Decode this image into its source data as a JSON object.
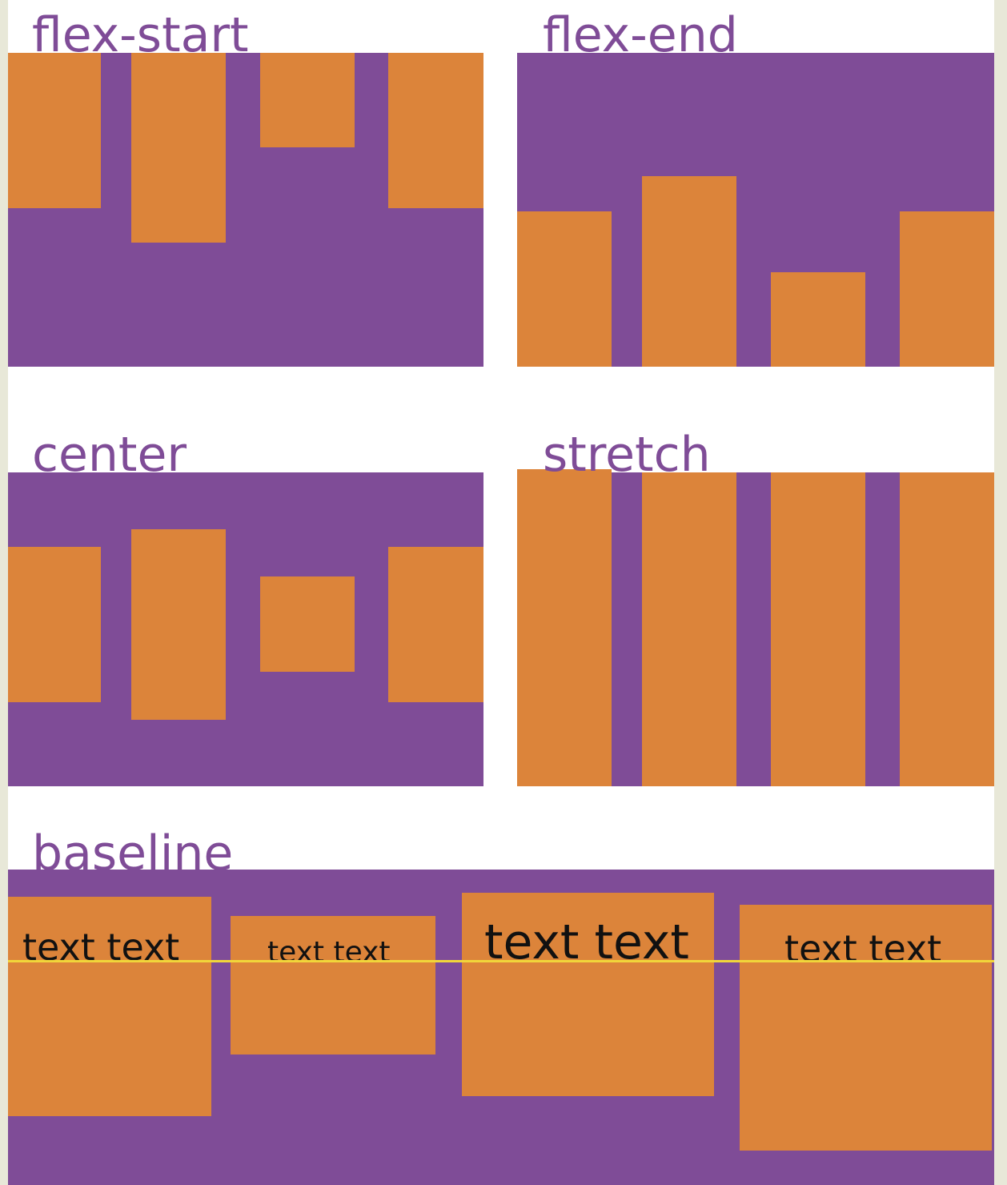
{
  "labels": {
    "flex_start": "flex-start",
    "flex_end": "flex-end",
    "center": "center",
    "stretch": "stretch",
    "baseline": "baseline"
  },
  "baseline_box_text": "text text",
  "colors": {
    "panel": "#7f4c97",
    "item": "#dc843a",
    "baseline_line": "#f1d63a",
    "page": "#ffffff"
  }
}
